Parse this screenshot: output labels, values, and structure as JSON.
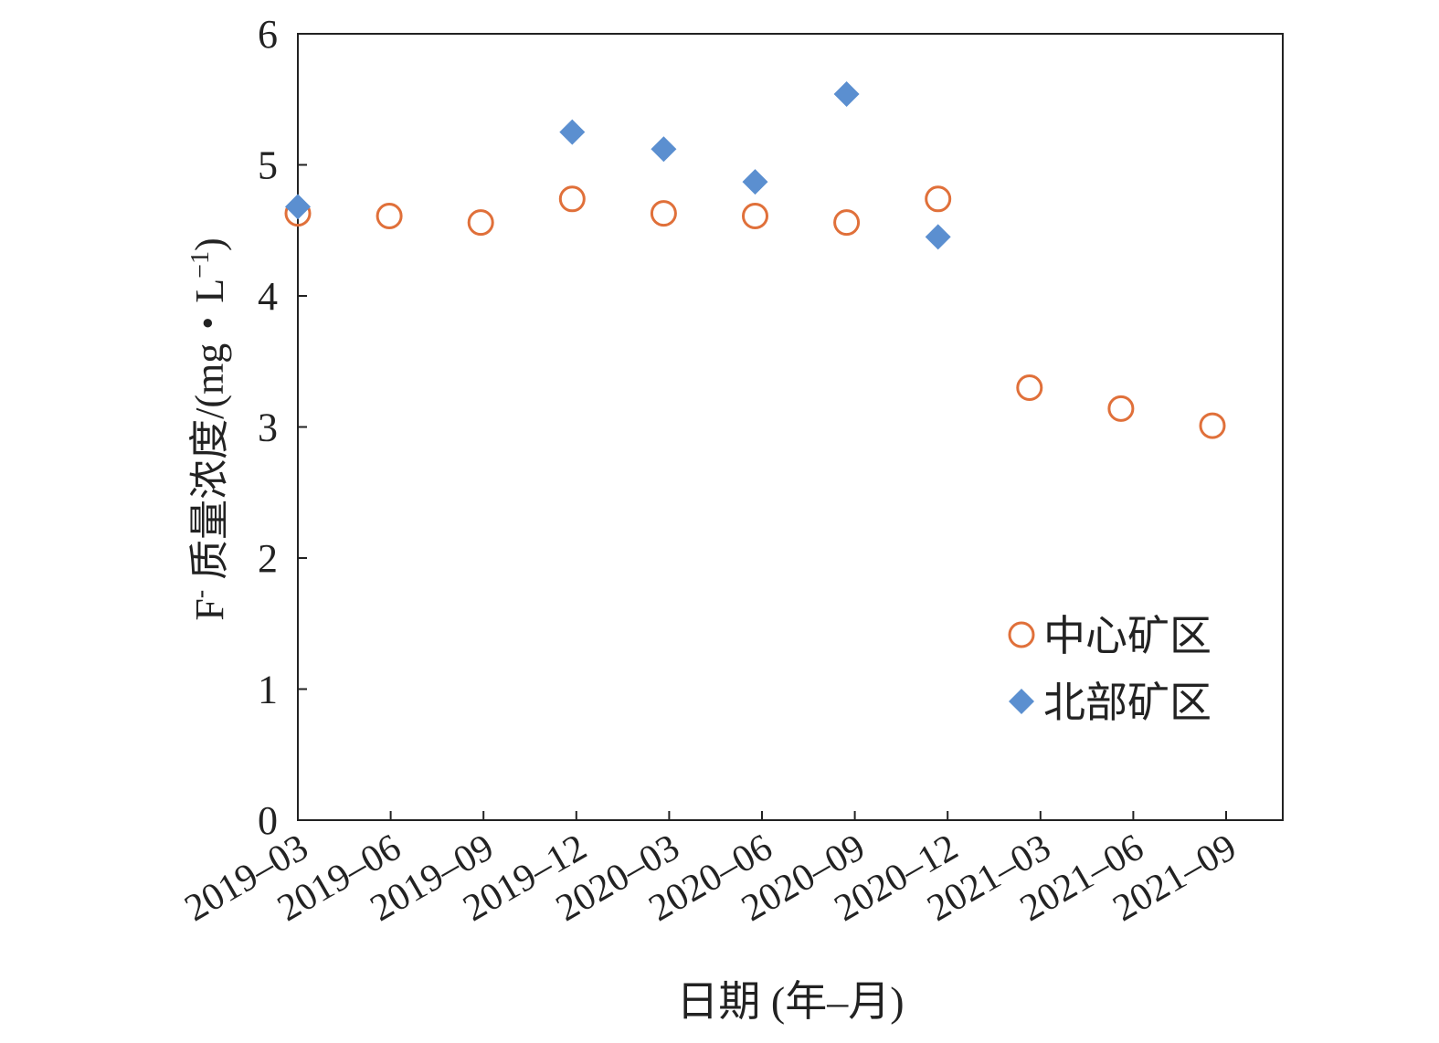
{
  "chart_data": {
    "type": "scatter",
    "title": "",
    "xlabel": "日期 (年–月)",
    "ylabel_main": "F",
    "ylabel_sup": "-",
    "ylabel_rest": " 质量浓度/(mg・L",
    "ylabel_sup2": "−1",
    "ylabel_end": ")",
    "ylim": [
      0,
      6
    ],
    "yticks": [
      "0",
      "1",
      "2",
      "3",
      "4",
      "5",
      "6"
    ],
    "categories": [
      "2019–03",
      "2019–06",
      "2019–09",
      "2019–12",
      "2020–03",
      "2020–06",
      "2020–09",
      "2020–12",
      "2021–03",
      "2021–06",
      "2021–09"
    ],
    "grid": false,
    "legend_position": "bottom-right",
    "series": [
      {
        "name": "中心矿区",
        "marker": "open-circle",
        "color": "#E0703A",
        "values": [
          4.63,
          4.61,
          4.56,
          4.74,
          4.63,
          4.61,
          4.56,
          4.74,
          3.3,
          3.14,
          3.01
        ]
      },
      {
        "name": "北部矿区",
        "marker": "diamond",
        "color": "#5B8FD0",
        "values": [
          4.68,
          null,
          null,
          5.25,
          5.12,
          4.87,
          5.54,
          4.45,
          null,
          null,
          null
        ]
      }
    ]
  }
}
